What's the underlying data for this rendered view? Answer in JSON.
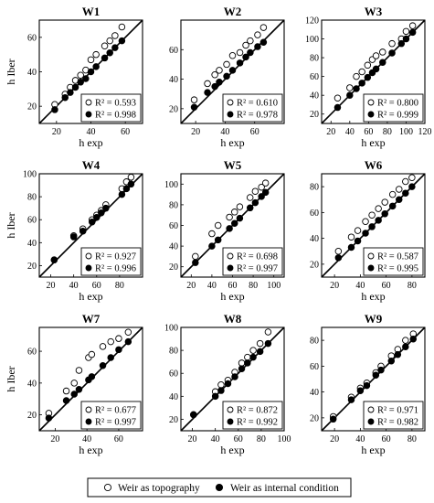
{
  "legend": {
    "open": "Weir as topography",
    "filled": "Weir as internal condition"
  },
  "chart_data": [
    {
      "type": "scatter",
      "title": "W1",
      "xlabel": "h exp",
      "ylabel": "h Iber",
      "xlim": [
        10,
        70
      ],
      "ylim": [
        10,
        70
      ],
      "xticks": [
        20,
        40,
        60
      ],
      "yticks": [
        20,
        40,
        60
      ],
      "series": [
        {
          "name": "Weir as topography",
          "marker": "open",
          "r2": "R² = 0.593",
          "points": [
            [
              19,
              21
            ],
            [
              25,
              27
            ],
            [
              28,
              31
            ],
            [
              31,
              35
            ],
            [
              34,
              38
            ],
            [
              37,
              41
            ],
            [
              40,
              47
            ],
            [
              43,
              50
            ],
            [
              48,
              55
            ],
            [
              51,
              58
            ],
            [
              54,
              61
            ],
            [
              58,
              66
            ]
          ]
        },
        {
          "name": "Weir as internal condition",
          "marker": "filled",
          "r2": "R² = 0.998",
          "points": [
            [
              19,
              18
            ],
            [
              25,
              25
            ],
            [
              28,
              28
            ],
            [
              31,
              31
            ],
            [
              34,
              34
            ],
            [
              37,
              36
            ],
            [
              40,
              40
            ],
            [
              43,
              43
            ],
            [
              48,
              48
            ],
            [
              51,
              51
            ],
            [
              54,
              54
            ],
            [
              58,
              58
            ]
          ]
        }
      ]
    },
    {
      "type": "scatter",
      "title": "W2",
      "xlabel": "h exp",
      "ylabel": "",
      "xlim": [
        10,
        80
      ],
      "ylim": [
        10,
        80
      ],
      "xticks": [
        20,
        40,
        60
      ],
      "yticks": [
        20,
        40,
        60
      ],
      "series": [
        {
          "name": "Weir as topography",
          "marker": "open",
          "r2": "R² = 0.610",
          "points": [
            [
              19,
              26
            ],
            [
              28,
              37
            ],
            [
              33,
              43
            ],
            [
              36,
              46
            ],
            [
              41,
              50
            ],
            [
              45,
              56
            ],
            [
              50,
              58
            ],
            [
              54,
              63
            ],
            [
              57,
              66
            ],
            [
              62,
              70
            ],
            [
              66,
              75
            ]
          ]
        },
        {
          "name": "Weir as internal condition",
          "marker": "filled",
          "r2": "R² = 0.978",
          "points": [
            [
              19,
              21
            ],
            [
              28,
              31
            ],
            [
              33,
              35
            ],
            [
              36,
              38
            ],
            [
              41,
              42
            ],
            [
              45,
              46
            ],
            [
              50,
              51
            ],
            [
              54,
              55
            ],
            [
              57,
              58
            ],
            [
              62,
              62
            ],
            [
              66,
              65
            ]
          ]
        }
      ]
    },
    {
      "type": "scatter",
      "title": "W3",
      "xlabel": "h exp",
      "ylabel": "",
      "xlim": [
        10,
        120
      ],
      "ylim": [
        10,
        120
      ],
      "xticks": [
        20,
        40,
        60,
        80,
        100,
        120
      ],
      "yticks": [
        20,
        40,
        60,
        80,
        100,
        120
      ],
      "series": [
        {
          "name": "Weir as topography",
          "marker": "open",
          "r2": "R² = 0.800",
          "points": [
            [
              27,
              37
            ],
            [
              40,
              48
            ],
            [
              47,
              60
            ],
            [
              53,
              65
            ],
            [
              59,
              72
            ],
            [
              64,
              78
            ],
            [
              68,
              82
            ],
            [
              75,
              86
            ],
            [
              85,
              95
            ],
            [
              95,
              100
            ],
            [
              100,
              108
            ],
            [
              107,
              114
            ]
          ]
        },
        {
          "name": "Weir as internal condition",
          "marker": "filled",
          "r2": "R² = 0.999",
          "points": [
            [
              27,
              27
            ],
            [
              40,
              40
            ],
            [
              47,
              47
            ],
            [
              53,
              53
            ],
            [
              59,
              59
            ],
            [
              64,
              64
            ],
            [
              68,
              68
            ],
            [
              75,
              75
            ],
            [
              85,
              85
            ],
            [
              95,
              95
            ],
            [
              100,
              100
            ],
            [
              107,
              107
            ]
          ]
        }
      ]
    },
    {
      "type": "scatter",
      "title": "W4",
      "xlabel": "h exp",
      "ylabel": "h Iber",
      "xlim": [
        10,
        100
      ],
      "ylim": [
        10,
        100
      ],
      "xticks": [
        20,
        40,
        60,
        80
      ],
      "yticks": [
        20,
        40,
        60,
        80,
        100
      ],
      "series": [
        {
          "name": "Weir as topography",
          "marker": "open",
          "r2": "R² = 0.927",
          "points": [
            [
              23,
              25
            ],
            [
              40,
              46
            ],
            [
              48,
              52
            ],
            [
              56,
              60
            ],
            [
              60,
              64
            ],
            [
              64,
              68
            ],
            [
              68,
              73
            ],
            [
              82,
              87
            ],
            [
              86,
              93
            ],
            [
              90,
              97
            ]
          ]
        },
        {
          "name": "Weir as internal condition",
          "marker": "filled",
          "r2": "R² = 0.996",
          "points": [
            [
              23,
              25
            ],
            [
              40,
              45
            ],
            [
              48,
              50
            ],
            [
              56,
              58
            ],
            [
              60,
              62
            ],
            [
              64,
              66
            ],
            [
              68,
              70
            ],
            [
              82,
              82
            ],
            [
              86,
              87
            ],
            [
              90,
              91
            ]
          ]
        }
      ]
    },
    {
      "type": "scatter",
      "title": "W5",
      "xlabel": "h exp",
      "ylabel": "",
      "xlim": [
        10,
        110
      ],
      "ylim": [
        10,
        110
      ],
      "xticks": [
        20,
        40,
        60,
        80,
        100
      ],
      "yticks": [
        20,
        40,
        60,
        80,
        100
      ],
      "series": [
        {
          "name": "Weir as topography",
          "marker": "open",
          "r2": "R² = 0.698",
          "points": [
            [
              24,
              30
            ],
            [
              40,
              52
            ],
            [
              46,
              60
            ],
            [
              57,
              68
            ],
            [
              62,
              73
            ],
            [
              67,
              78
            ],
            [
              77,
              87
            ],
            [
              82,
              93
            ],
            [
              88,
              97
            ],
            [
              92,
              101
            ]
          ]
        },
        {
          "name": "Weir as internal condition",
          "marker": "filled",
          "r2": "R² = 0.997",
          "points": [
            [
              24,
              24
            ],
            [
              40,
              40
            ],
            [
              46,
              46
            ],
            [
              57,
              57
            ],
            [
              62,
              62
            ],
            [
              67,
              67
            ],
            [
              77,
              77
            ],
            [
              82,
              82
            ],
            [
              88,
              88
            ],
            [
              92,
              92
            ]
          ]
        }
      ]
    },
    {
      "type": "scatter",
      "title": "W6",
      "xlabel": "h exp",
      "ylabel": "",
      "xlim": [
        10,
        90
      ],
      "ylim": [
        10,
        90
      ],
      "xticks": [
        20,
        40,
        60,
        80
      ],
      "yticks": [
        20,
        40,
        60,
        80
      ],
      "series": [
        {
          "name": "Weir as topography",
          "marker": "open",
          "r2": "R² = 0.587",
          "points": [
            [
              23,
              30
            ],
            [
              33,
              41
            ],
            [
              38,
              46
            ],
            [
              44,
              53
            ],
            [
              49,
              58
            ],
            [
              54,
              63
            ],
            [
              59,
              68
            ],
            [
              65,
              74
            ],
            [
              70,
              78
            ],
            [
              75,
              84
            ],
            [
              80,
              87
            ]
          ]
        },
        {
          "name": "Weir as internal condition",
          "marker": "filled",
          "r2": "R² = 0.995",
          "points": [
            [
              23,
              25
            ],
            [
              33,
              33
            ],
            [
              38,
              38
            ],
            [
              44,
              44
            ],
            [
              49,
              49
            ],
            [
              54,
              54
            ],
            [
              59,
              59
            ],
            [
              65,
              65
            ],
            [
              70,
              70
            ],
            [
              75,
              75
            ],
            [
              80,
              80
            ]
          ]
        }
      ]
    },
    {
      "type": "scatter",
      "title": "W7",
      "xlabel": "h exp",
      "ylabel": "h Iber",
      "xlim": [
        10,
        75
      ],
      "ylim": [
        10,
        75
      ],
      "xticks": [
        20,
        40,
        60
      ],
      "yticks": [
        20,
        40,
        60
      ],
      "series": [
        {
          "name": "Weir as topography",
          "marker": "open",
          "r2": "R² = 0.677",
          "points": [
            [
              16,
              21
            ],
            [
              27,
              35
            ],
            [
              32,
              40
            ],
            [
              35,
              48
            ],
            [
              41,
              56
            ],
            [
              43,
              58
            ],
            [
              50,
              63
            ],
            [
              55,
              66
            ],
            [
              60,
              68
            ],
            [
              66,
              72
            ]
          ]
        },
        {
          "name": "Weir as internal condition",
          "marker": "filled",
          "r2": "R² = 0.997",
          "points": [
            [
              16,
              18
            ],
            [
              27,
              29
            ],
            [
              32,
              33
            ],
            [
              35,
              36
            ],
            [
              41,
              42
            ],
            [
              43,
              44
            ],
            [
              50,
              51
            ],
            [
              55,
              56
            ],
            [
              60,
              61
            ],
            [
              66,
              66
            ]
          ]
        }
      ]
    },
    {
      "type": "scatter",
      "title": "W8",
      "xlabel": "h exp",
      "ylabel": "",
      "xlim": [
        10,
        100
      ],
      "ylim": [
        10,
        100
      ],
      "xticks": [
        20,
        40,
        60,
        80,
        100
      ],
      "yticks": [
        20,
        40,
        60,
        80,
        100
      ],
      "series": [
        {
          "name": "Weir as topography",
          "marker": "open",
          "r2": "R² = 0.872",
          "points": [
            [
              21,
              24
            ],
            [
              40,
              44
            ],
            [
              45,
              50
            ],
            [
              51,
              54
            ],
            [
              57,
              61
            ],
            [
              63,
              69
            ],
            [
              68,
              74
            ],
            [
              73,
              80
            ],
            [
              79,
              86
            ],
            [
              86,
              96
            ]
          ]
        },
        {
          "name": "Weir as internal condition",
          "marker": "filled",
          "r2": "R² = 0.992",
          "points": [
            [
              21,
              24
            ],
            [
              40,
              40
            ],
            [
              45,
              45
            ],
            [
              51,
              51
            ],
            [
              57,
              57
            ],
            [
              63,
              64
            ],
            [
              68,
              69
            ],
            [
              73,
              74
            ],
            [
              79,
              79
            ],
            [
              86,
              86
            ]
          ]
        }
      ]
    },
    {
      "type": "scatter",
      "title": "W9",
      "xlabel": "h exp",
      "ylabel": "",
      "xlim": [
        10,
        90
      ],
      "ylim": [
        10,
        90
      ],
      "xticks": [
        20,
        40,
        60,
        80
      ],
      "yticks": [
        20,
        40,
        60,
        80
      ],
      "series": [
        {
          "name": "Weir as topography",
          "marker": "open",
          "r2": "R² = 0.971",
          "points": [
            [
              19,
              21
            ],
            [
              33,
              36
            ],
            [
              40,
              43
            ],
            [
              45,
              47
            ],
            [
              52,
              55
            ],
            [
              56,
              60
            ],
            [
              64,
              68
            ],
            [
              69,
              73
            ],
            [
              75,
              80
            ],
            [
              81,
              85
            ]
          ]
        },
        {
          "name": "Weir as internal condition",
          "marker": "filled",
          "r2": "R² = 0.982",
          "points": [
            [
              19,
              19
            ],
            [
              33,
              34
            ],
            [
              40,
              41
            ],
            [
              45,
              45
            ],
            [
              52,
              53
            ],
            [
              56,
              57
            ],
            [
              64,
              64
            ],
            [
              69,
              69
            ],
            [
              75,
              75
            ],
            [
              81,
              81
            ]
          ]
        }
      ]
    }
  ]
}
